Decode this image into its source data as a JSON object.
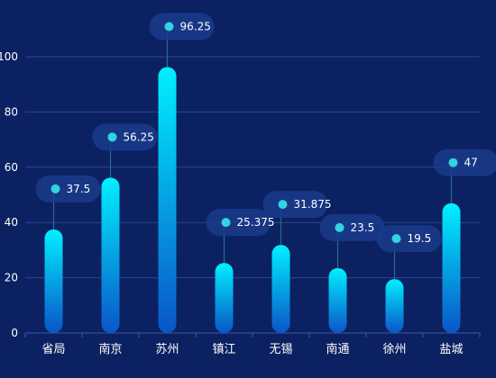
{
  "chart_data": {
    "type": "bar",
    "categories": [
      "省局",
      "南京",
      "苏州",
      "镇江",
      "无锡",
      "南通",
      "徐州",
      "盐城"
    ],
    "values": [
      37.5,
      56.25,
      96.25,
      25.375,
      31.875,
      23.5,
      19.5,
      47
    ],
    "value_labels": [
      "37.5",
      "56.25",
      "96.25",
      "25.375",
      "31.875",
      "23.5",
      "19.5",
      "47"
    ],
    "ylim": [
      0,
      110
    ],
    "yticks": [
      "0",
      "20",
      "40",
      "60",
      "80",
      "100"
    ],
    "grid": true,
    "colors": {
      "background": "#0b2161",
      "bar_top": "#00f0ff",
      "bar_bottom": "#0a55c8",
      "label_bubble": "#1a3b8c",
      "label_dot": "#31d4e0",
      "grid": "#2a4a8f",
      "axis": "#3a5aa0"
    }
  }
}
